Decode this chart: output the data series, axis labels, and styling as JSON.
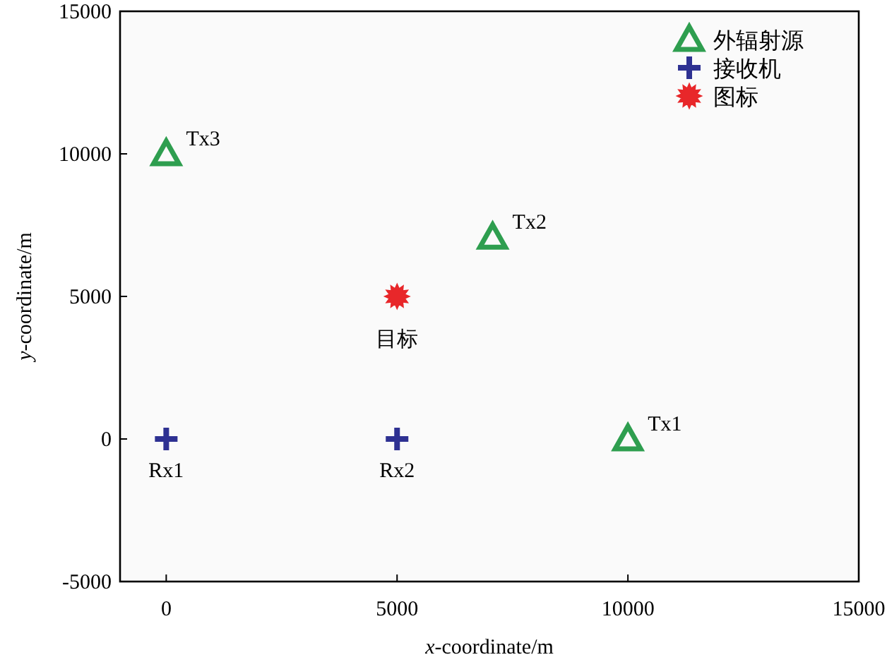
{
  "chart_data": {
    "type": "scatter",
    "xlabel": "x-coordinate/m",
    "ylabel": "y-coordinate/m",
    "xlim": [
      -1000,
      15000
    ],
    "ylim": [
      -5000,
      15000
    ],
    "xticks": [
      0,
      5000,
      10000,
      15000
    ],
    "yticks": [
      -5000,
      0,
      5000,
      10000,
      15000
    ],
    "grid": false,
    "legend": "top right",
    "series": [
      {
        "name": "外辐射源",
        "color": "#2e9e4f",
        "marker": "triangle",
        "x": [
          10000,
          7070,
          0
        ],
        "values": [
          0,
          7070,
          10000
        ]
      },
      {
        "name": "接收机",
        "color": "#2e3192",
        "marker": "cross",
        "x": [
          0,
          5000
        ],
        "values": [
          0,
          0
        ]
      },
      {
        "name": "图标",
        "color": "#e8272a",
        "marker": "star",
        "x": [
          5000
        ],
        "values": [
          5000
        ]
      }
    ],
    "annotations": [
      {
        "text": "Tx1",
        "x": 10000,
        "y": 0
      },
      {
        "text": "Tx2",
        "x": 7070,
        "y": 7070
      },
      {
        "text": "Tx3",
        "x": 0,
        "y": 10000
      },
      {
        "text": "Rx1",
        "x": 0,
        "y": 0
      },
      {
        "text": "Rx2",
        "x": 5000,
        "y": 0
      },
      {
        "text": "目标",
        "x": 5000,
        "y": 5000
      }
    ]
  }
}
